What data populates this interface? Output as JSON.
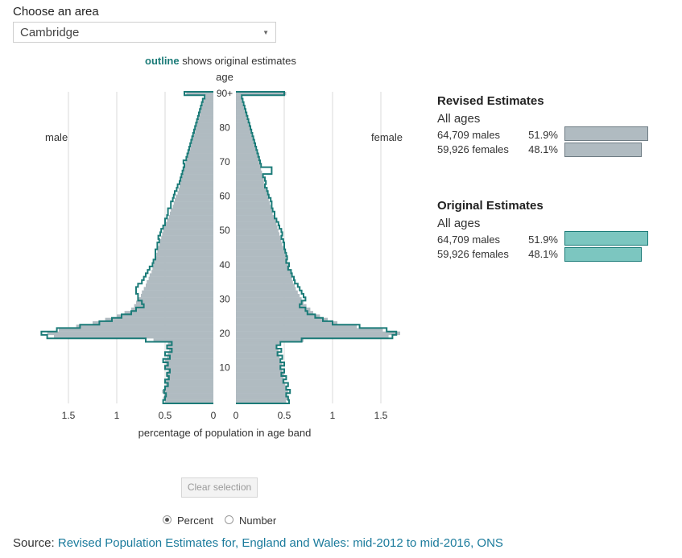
{
  "controls": {
    "area_label": "Choose an area",
    "area_value": "Cambridge",
    "clear_label": "Clear selection",
    "radio_percent": "Percent",
    "radio_number": "Number",
    "selected_mode": "percent"
  },
  "legend_note": {
    "bold": "outline",
    "rest": " shows original estimates"
  },
  "source": {
    "prefix": "Source: ",
    "link_text": "Revised Population Estimates for, England and Wales: mid-2012 to mid-2016, ONS"
  },
  "summary": {
    "revised": {
      "title": "Revised Estimates",
      "sub": "All ages",
      "rows": [
        {
          "label": "64,709 males",
          "pct": "51.9%",
          "value": 51.9
        },
        {
          "label": "59,926 females",
          "pct": "48.1%",
          "value": 48.1
        }
      ]
    },
    "original": {
      "title": "Original Estimates",
      "sub": "All ages",
      "rows": [
        {
          "label": "64,709 males",
          "pct": "51.9%",
          "value": 51.9
        },
        {
          "label": "59,926 females",
          "pct": "48.1%",
          "value": 48.1
        }
      ]
    }
  },
  "colors": {
    "revised_fill": "#b0bbc1",
    "original_outline": "#1b7b78",
    "original_fill": "#7cc6c0",
    "grid": "#d9d9d9",
    "overflow": "#b59ab8"
  },
  "chart_data": {
    "type": "bar",
    "orientation": "horizontal-pyramid",
    "title": "",
    "ylabel": "age",
    "xlabel": "percentage of population in age band",
    "left_label": "male",
    "right_label": "female",
    "age_ticks": [
      "10",
      "20",
      "30",
      "40",
      "50",
      "60",
      "70",
      "80",
      "90+"
    ],
    "x_ticks_left": [
      "1.5",
      "1",
      "0.5",
      "0"
    ],
    "x_ticks_right": [
      "0",
      "0.5",
      "1",
      "1.5"
    ],
    "xlim": [
      0,
      1.75
    ],
    "ages": [
      "0",
      "1",
      "2",
      "3",
      "4",
      "5",
      "6",
      "7",
      "8",
      "9",
      "10",
      "11",
      "12",
      "13",
      "14",
      "15",
      "16",
      "17",
      "18",
      "19",
      "20",
      "21",
      "22",
      "23",
      "24",
      "25",
      "26",
      "27",
      "28",
      "29",
      "30",
      "31",
      "32",
      "33",
      "34",
      "35",
      "36",
      "37",
      "38",
      "39",
      "40",
      "41",
      "42",
      "43",
      "44",
      "45",
      "46",
      "47",
      "48",
      "49",
      "50",
      "51",
      "52",
      "53",
      "54",
      "55",
      "56",
      "57",
      "58",
      "59",
      "60",
      "61",
      "62",
      "63",
      "64",
      "65",
      "66",
      "67",
      "68",
      "69",
      "70",
      "71",
      "72",
      "73",
      "74",
      "75",
      "76",
      "77",
      "78",
      "79",
      "80",
      "81",
      "82",
      "83",
      "84",
      "85",
      "86",
      "87",
      "88",
      "89",
      "90+"
    ],
    "series": [
      {
        "name": "male",
        "estimate": "revised",
        "values": [
          0.5,
          0.52,
          0.51,
          0.53,
          0.51,
          0.49,
          0.5,
          0.48,
          0.49,
          0.47,
          0.5,
          0.49,
          0.5,
          0.48,
          0.47,
          0.46,
          0.48,
          0.47,
          0.62,
          1.65,
          1.72,
          1.6,
          1.42,
          1.25,
          1.12,
          1.0,
          0.92,
          0.85,
          0.82,
          0.8,
          0.78,
          0.75,
          0.74,
          0.72,
          0.7,
          0.69,
          0.67,
          0.66,
          0.64,
          0.63,
          0.62,
          0.61,
          0.6,
          0.59,
          0.58,
          0.57,
          0.56,
          0.55,
          0.54,
          0.53,
          0.52,
          0.51,
          0.5,
          0.48,
          0.46,
          0.45,
          0.44,
          0.42,
          0.41,
          0.4,
          0.39,
          0.37,
          0.36,
          0.35,
          0.34,
          0.33,
          0.32,
          0.31,
          0.3,
          0.3,
          0.29,
          0.27,
          0.26,
          0.25,
          0.24,
          0.23,
          0.22,
          0.21,
          0.2,
          0.19,
          0.18,
          0.17,
          0.16,
          0.15,
          0.14,
          0.13,
          0.12,
          0.11,
          0.1,
          0.08,
          0.28
        ]
      },
      {
        "name": "female",
        "estimate": "revised",
        "values": [
          0.52,
          0.55,
          0.53,
          0.54,
          0.52,
          0.51,
          0.5,
          0.49,
          0.5,
          0.48,
          0.47,
          0.48,
          0.46,
          0.45,
          0.44,
          0.44,
          0.43,
          0.45,
          0.7,
          1.58,
          1.7,
          1.52,
          1.25,
          1.05,
          0.95,
          0.87,
          0.8,
          0.77,
          0.73,
          0.7,
          0.68,
          0.66,
          0.64,
          0.62,
          0.61,
          0.59,
          0.58,
          0.57,
          0.56,
          0.55,
          0.54,
          0.53,
          0.52,
          0.51,
          0.5,
          0.49,
          0.48,
          0.47,
          0.46,
          0.45,
          0.44,
          0.43,
          0.42,
          0.41,
          0.4,
          0.38,
          0.37,
          0.36,
          0.35,
          0.34,
          0.33,
          0.32,
          0.31,
          0.3,
          0.29,
          0.29,
          0.28,
          0.27,
          0.26,
          0.25,
          0.24,
          0.23,
          0.22,
          0.21,
          0.2,
          0.19,
          0.18,
          0.17,
          0.16,
          0.15,
          0.14,
          0.13,
          0.12,
          0.11,
          0.1,
          0.09,
          0.08,
          0.07,
          0.06,
          0.05,
          0.52
        ]
      },
      {
        "name": "male",
        "estimate": "original",
        "values": [
          0.52,
          0.5,
          0.49,
          0.51,
          0.5,
          0.47,
          0.5,
          0.46,
          0.48,
          0.45,
          0.5,
          0.47,
          0.52,
          0.45,
          0.5,
          0.43,
          0.48,
          0.43,
          0.7,
          1.72,
          1.78,
          1.62,
          1.38,
          1.18,
          1.05,
          0.95,
          0.85,
          0.8,
          0.72,
          0.74,
          0.78,
          0.78,
          0.8,
          0.8,
          0.78,
          0.74,
          0.72,
          0.7,
          0.68,
          0.66,
          0.63,
          0.62,
          0.6,
          0.6,
          0.6,
          0.58,
          0.58,
          0.56,
          0.57,
          0.55,
          0.54,
          0.52,
          0.5,
          0.5,
          0.48,
          0.47,
          0.47,
          0.44,
          0.44,
          0.42,
          0.41,
          0.4,
          0.38,
          0.37,
          0.35,
          0.34,
          0.33,
          0.32,
          0.31,
          0.3,
          0.31,
          0.28,
          0.27,
          0.26,
          0.25,
          0.24,
          0.23,
          0.22,
          0.21,
          0.2,
          0.19,
          0.18,
          0.17,
          0.16,
          0.15,
          0.14,
          0.13,
          0.12,
          0.11,
          0.09,
          0.3
        ]
      },
      {
        "name": "female",
        "estimate": "original",
        "values": [
          0.55,
          0.54,
          0.52,
          0.56,
          0.52,
          0.54,
          0.49,
          0.52,
          0.47,
          0.5,
          0.46,
          0.5,
          0.46,
          0.48,
          0.43,
          0.47,
          0.42,
          0.46,
          0.68,
          1.62,
          1.66,
          1.56,
          1.28,
          1.0,
          0.9,
          0.82,
          0.74,
          0.72,
          0.66,
          0.68,
          0.72,
          0.7,
          0.68,
          0.66,
          0.64,
          0.61,
          0.6,
          0.58,
          0.57,
          0.54,
          0.55,
          0.52,
          0.53,
          0.52,
          0.51,
          0.5,
          0.5,
          0.49,
          0.47,
          0.48,
          0.47,
          0.45,
          0.44,
          0.42,
          0.4,
          0.4,
          0.38,
          0.37,
          0.37,
          0.36,
          0.34,
          0.33,
          0.32,
          0.3,
          0.31,
          0.3,
          0.28,
          0.37,
          0.37,
          0.26,
          0.25,
          0.24,
          0.23,
          0.22,
          0.21,
          0.2,
          0.19,
          0.18,
          0.17,
          0.16,
          0.15,
          0.14,
          0.13,
          0.12,
          0.11,
          0.1,
          0.09,
          0.08,
          0.07,
          0.06,
          0.5
        ]
      }
    ]
  }
}
